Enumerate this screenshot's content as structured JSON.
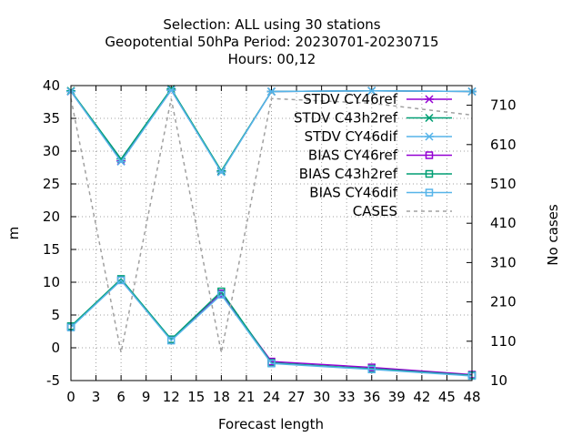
{
  "chart_data": {
    "type": "line",
    "title_lines": [
      "Selection: ALL using    30 stations",
      "Geopotential 50hPa   Period: 20230701-20230715",
      "Hours:  00,12"
    ],
    "xlabel": "Forecast length",
    "ylabel": "m",
    "y2label": "No cases",
    "xlim": [
      0,
      48
    ],
    "ylim": [
      -5,
      40
    ],
    "y2lim": [
      10,
      760
    ],
    "xticks": [
      "0",
      "3",
      "6",
      "9",
      "12",
      "15",
      "18",
      "21",
      "24",
      "27",
      "30",
      "33",
      "36",
      "39",
      "42",
      "45",
      "48"
    ],
    "yticks": [
      "-5",
      "0",
      "5",
      "10",
      "15",
      "20",
      "25",
      "30",
      "35",
      "40"
    ],
    "y2ticks": [
      "10",
      "110",
      "210",
      "310",
      "410",
      "510",
      "610",
      "710"
    ],
    "grid": true,
    "legend_position": "top-right",
    "series": [
      {
        "name": "STDV CY46ref",
        "axis": "y",
        "marker": "x",
        "color": "#9400d3",
        "x": [
          0,
          6,
          12,
          18,
          24,
          36,
          48
        ],
        "values": [
          39.1,
          28.5,
          39.3,
          26.9,
          39.1,
          39.2,
          39.1
        ]
      },
      {
        "name": "STDV C43h2ref",
        "axis": "y",
        "marker": "x",
        "color": "#009e73",
        "x": [
          0,
          6,
          12,
          18,
          24,
          36,
          48
        ],
        "values": [
          39.2,
          28.8,
          39.5,
          27.0,
          39.1,
          39.2,
          39.1
        ]
      },
      {
        "name": "STDV CY46dif",
        "axis": "y",
        "marker": "x",
        "color": "#56b4e9",
        "x": [
          0,
          6,
          12,
          18,
          24,
          36,
          48
        ],
        "values": [
          39.1,
          28.4,
          39.3,
          26.8,
          39.1,
          39.2,
          39.1
        ]
      },
      {
        "name": "BIAS CY46ref",
        "axis": "y",
        "marker": "square",
        "color": "#9400d3",
        "x": [
          0,
          6,
          12,
          18,
          24,
          36,
          48
        ],
        "values": [
          3.2,
          10.3,
          1.2,
          8.3,
          -2.1,
          -3.0,
          -4.1
        ]
      },
      {
        "name": "BIAS C43h2ref",
        "axis": "y",
        "marker": "square",
        "color": "#009e73",
        "x": [
          0,
          6,
          12,
          18,
          24,
          36,
          48
        ],
        "values": [
          3.3,
          10.5,
          1.3,
          8.6,
          -2.3,
          -3.2,
          -4.2
        ]
      },
      {
        "name": "BIAS CY46dif",
        "axis": "y",
        "marker": "square",
        "color": "#56b4e9",
        "x": [
          0,
          6,
          12,
          18,
          24,
          36,
          48
        ],
        "values": [
          3.1,
          10.3,
          1.1,
          8.1,
          -2.4,
          -3.3,
          -4.3
        ]
      },
      {
        "name": "CASES",
        "axis": "y2",
        "marker": "none",
        "dashed": true,
        "color": "#a0a0a0",
        "x": [
          0,
          6,
          12,
          18,
          24,
          36,
          48
        ],
        "values": [
          727,
          81,
          727,
          81,
          727,
          715,
          685
        ]
      }
    ]
  }
}
